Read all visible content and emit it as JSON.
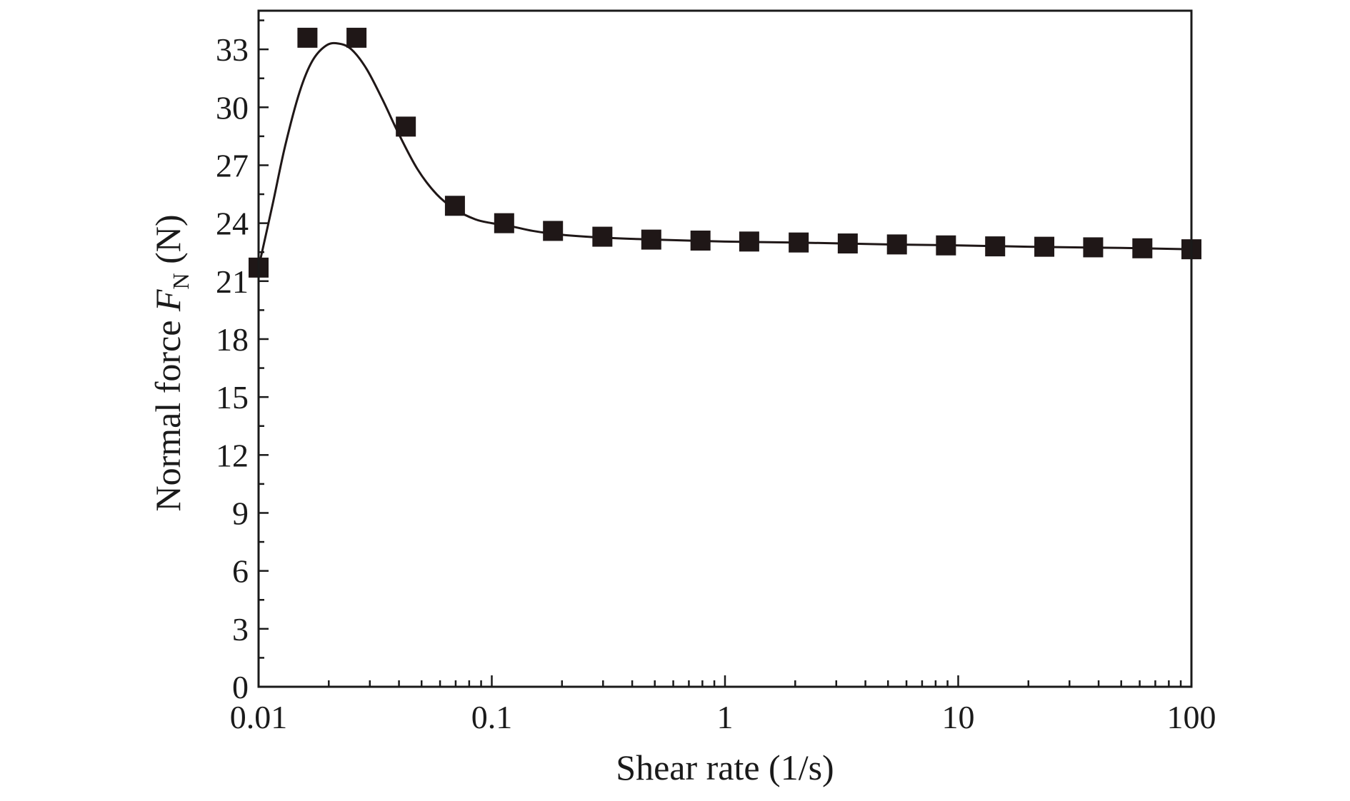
{
  "chart_data": {
    "type": "scatter",
    "xscale": "log",
    "xlim": [
      0.01,
      100
    ],
    "ylim": [
      0,
      35
    ],
    "xticks": [
      "0.01",
      "0.1",
      "1",
      "10",
      "100"
    ],
    "yticks": [
      "0",
      "3",
      "6",
      "9",
      "12",
      "15",
      "18",
      "21",
      "24",
      "27",
      "30",
      "33"
    ],
    "xlabel": "Shear rate (1/s)",
    "ylabel": {
      "prefix": "Normal force ",
      "symbol": "F",
      "subscript": "N",
      "unit": " (N)"
    },
    "grid": false,
    "colors": {
      "marker": "#1f1717",
      "line": "#1f1717",
      "axis": "#1a1a1a"
    },
    "series": [
      {
        "marker": "square",
        "x": [
          0.01,
          0.0162,
          0.0263,
          0.0428,
          0.0695,
          0.113,
          0.183,
          0.298,
          0.483,
          0.785,
          1.27,
          2.07,
          3.36,
          5.46,
          8.86,
          14.4,
          23.4,
          37.9,
          61.6,
          100
        ],
        "y": [
          21.7,
          33.6,
          33.6,
          29.0,
          24.9,
          24.0,
          23.6,
          23.3,
          23.15,
          23.1,
          23.05,
          23.0,
          22.95,
          22.9,
          22.85,
          22.8,
          22.78,
          22.75,
          22.7,
          22.65
        ]
      },
      {
        "marker": "none",
        "line": "smooth",
        "x": [
          0.01,
          0.0115,
          0.013,
          0.015,
          0.017,
          0.0195,
          0.022,
          0.025,
          0.029,
          0.034,
          0.04,
          0.048,
          0.058,
          0.07,
          0.085,
          0.1,
          0.12,
          0.15,
          0.2,
          0.3,
          0.5,
          1,
          2,
          5,
          10,
          20,
          50,
          100
        ],
        "y": [
          21.7,
          25.0,
          28.0,
          30.8,
          32.4,
          33.2,
          33.3,
          33.0,
          32.0,
          30.4,
          28.6,
          26.8,
          25.5,
          24.7,
          24.2,
          24.0,
          23.85,
          23.6,
          23.4,
          23.25,
          23.15,
          23.05,
          23.0,
          22.9,
          22.85,
          22.78,
          22.72,
          22.65
        ]
      }
    ]
  }
}
